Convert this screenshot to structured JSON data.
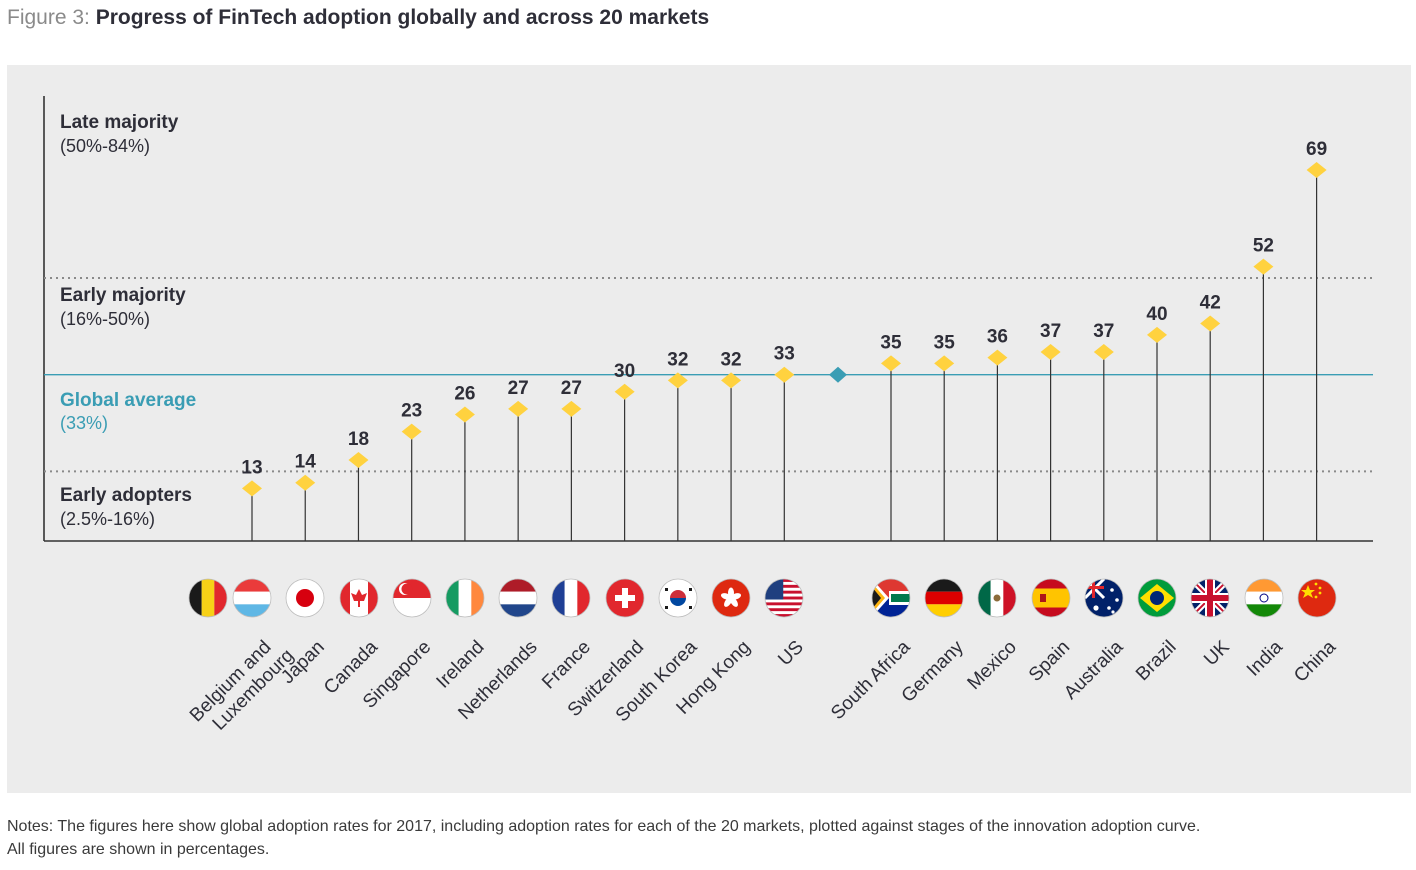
{
  "figure": {
    "label": "Figure 3:",
    "title": "Progress of FinTech adoption globally and across 20 markets"
  },
  "notes": [
    "Notes: The figures here show global adoption rates for 2017, including adoption rates for each of the 20 markets, plotted against stages of the innovation adoption curve.",
    "All figures are shown in percentages."
  ],
  "colors": {
    "marker": "#ffd23f",
    "average": "#3a9db4",
    "stem": "#333333",
    "band_divider": "#8a8a8a",
    "panel": "#ececec"
  },
  "chart_data": {
    "type": "scatter",
    "style": "lollipop",
    "units": "%",
    "categories": [
      "Belgium and Luxembourg",
      "Japan",
      "Canada",
      "Singapore",
      "Ireland",
      "Netherlands",
      "France",
      "Switzerland",
      "South Korea",
      "Hong Kong",
      "US",
      "South Africa",
      "Germany",
      "Mexico",
      "Spain",
      "Australia",
      "Brazil",
      "UK",
      "India",
      "China"
    ],
    "values": [
      13,
      14,
      18,
      23,
      26,
      27,
      27,
      30,
      32,
      32,
      33,
      35,
      35,
      36,
      37,
      37,
      40,
      42,
      52,
      69
    ],
    "category_lines": [
      [
        "Belgium and",
        "Luxembourg"
      ],
      [
        "Japan"
      ],
      [
        "Canada"
      ],
      [
        "Singapore"
      ],
      [
        "Ireland"
      ],
      [
        "Netherlands"
      ],
      [
        "France"
      ],
      [
        "Switzerland"
      ],
      [
        "South Korea"
      ],
      [
        "Hong Kong"
      ],
      [
        "US"
      ],
      [
        "South Africa"
      ],
      [
        "Germany"
      ],
      [
        "Mexico"
      ],
      [
        "Spain"
      ],
      [
        "Australia"
      ],
      [
        "Brazil"
      ],
      [
        "UK"
      ],
      [
        "India"
      ],
      [
        "China"
      ]
    ],
    "flag_icons": [
      "belgium-flag-icon",
      "luxembourg-flag-icon",
      "japan-flag-icon",
      "canada-flag-icon",
      "singapore-flag-icon",
      "ireland-flag-icon",
      "netherlands-flag-icon",
      "france-flag-icon",
      "switzerland-flag-icon",
      "south-korea-flag-icon",
      "hong-kong-flag-icon",
      "us-flag-icon",
      "south-africa-flag-icon",
      "germany-flag-icon",
      "mexico-flag-icon",
      "spain-flag-icon",
      "australia-flag-icon",
      "brazil-flag-icon",
      "uk-flag-icon",
      "india-flag-icon",
      "china-flag-icon"
    ],
    "global_average": {
      "value": 33,
      "label": "Global average",
      "sublabel": "(33%)"
    },
    "bands": [
      {
        "name": "Late majority",
        "range": "(50%-84%)"
      },
      {
        "name": "Early majority",
        "range": "(16%-50%)"
      },
      {
        "name": "Early adopters",
        "range": "(2.5%-16%)"
      }
    ],
    "band_dividers": [
      50,
      16
    ],
    "ylim": [
      9,
      77
    ],
    "grid": false,
    "legend": "none"
  }
}
